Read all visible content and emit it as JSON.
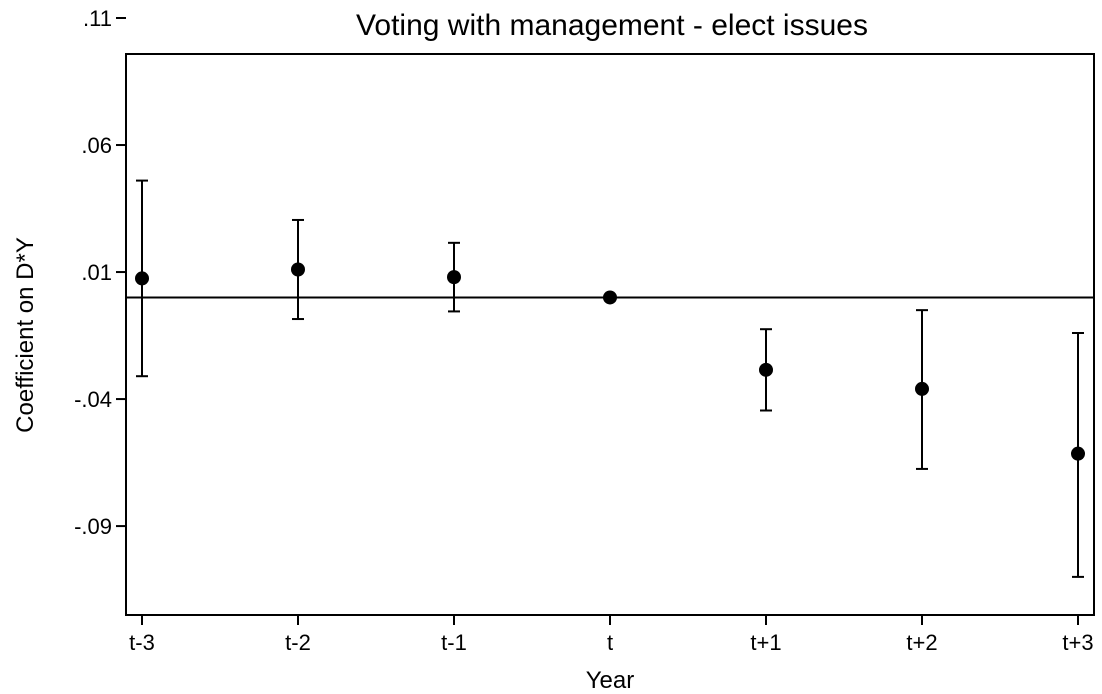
{
  "chart_data": {
    "type": "scatter",
    "title": "Voting with management - elect issues",
    "xlabel": "Year",
    "ylabel": "Coefficient on D*Y",
    "categories": [
      "t-3",
      "t-2",
      "t-1",
      "t",
      "t+1",
      "t+2",
      "t+3"
    ],
    "ylim": [
      -0.125,
      0.11
    ],
    "yticks": [
      {
        "value": 0.11,
        "label": ".11"
      },
      {
        "value": 0.06,
        "label": ".06"
      },
      {
        "value": 0.01,
        "label": ".01"
      },
      {
        "value": -0.04,
        "label": "-.04"
      },
      {
        "value": -0.09,
        "label": "-.09"
      }
    ],
    "reference_line_y": 0,
    "points": [
      {
        "x": "t-3",
        "estimate": 0.0075,
        "ci_low": -0.031,
        "ci_high": 0.046
      },
      {
        "x": "t-2",
        "estimate": 0.011,
        "ci_low": -0.0085,
        "ci_high": 0.0305
      },
      {
        "x": "t-1",
        "estimate": 0.008,
        "ci_low": -0.0055,
        "ci_high": 0.0215
      },
      {
        "x": "t",
        "estimate": 0.0,
        "ci_low": 0.0,
        "ci_high": 0.0
      },
      {
        "x": "t+1",
        "estimate": -0.0285,
        "ci_low": -0.0445,
        "ci_high": -0.0125
      },
      {
        "x": "t+2",
        "estimate": -0.036,
        "ci_low": -0.0675,
        "ci_high": -0.005
      },
      {
        "x": "t+3",
        "estimate": -0.0615,
        "ci_low": -0.11,
        "ci_high": -0.014
      }
    ],
    "grid": false,
    "marker_color": "#000000",
    "line_color": "#000000"
  }
}
